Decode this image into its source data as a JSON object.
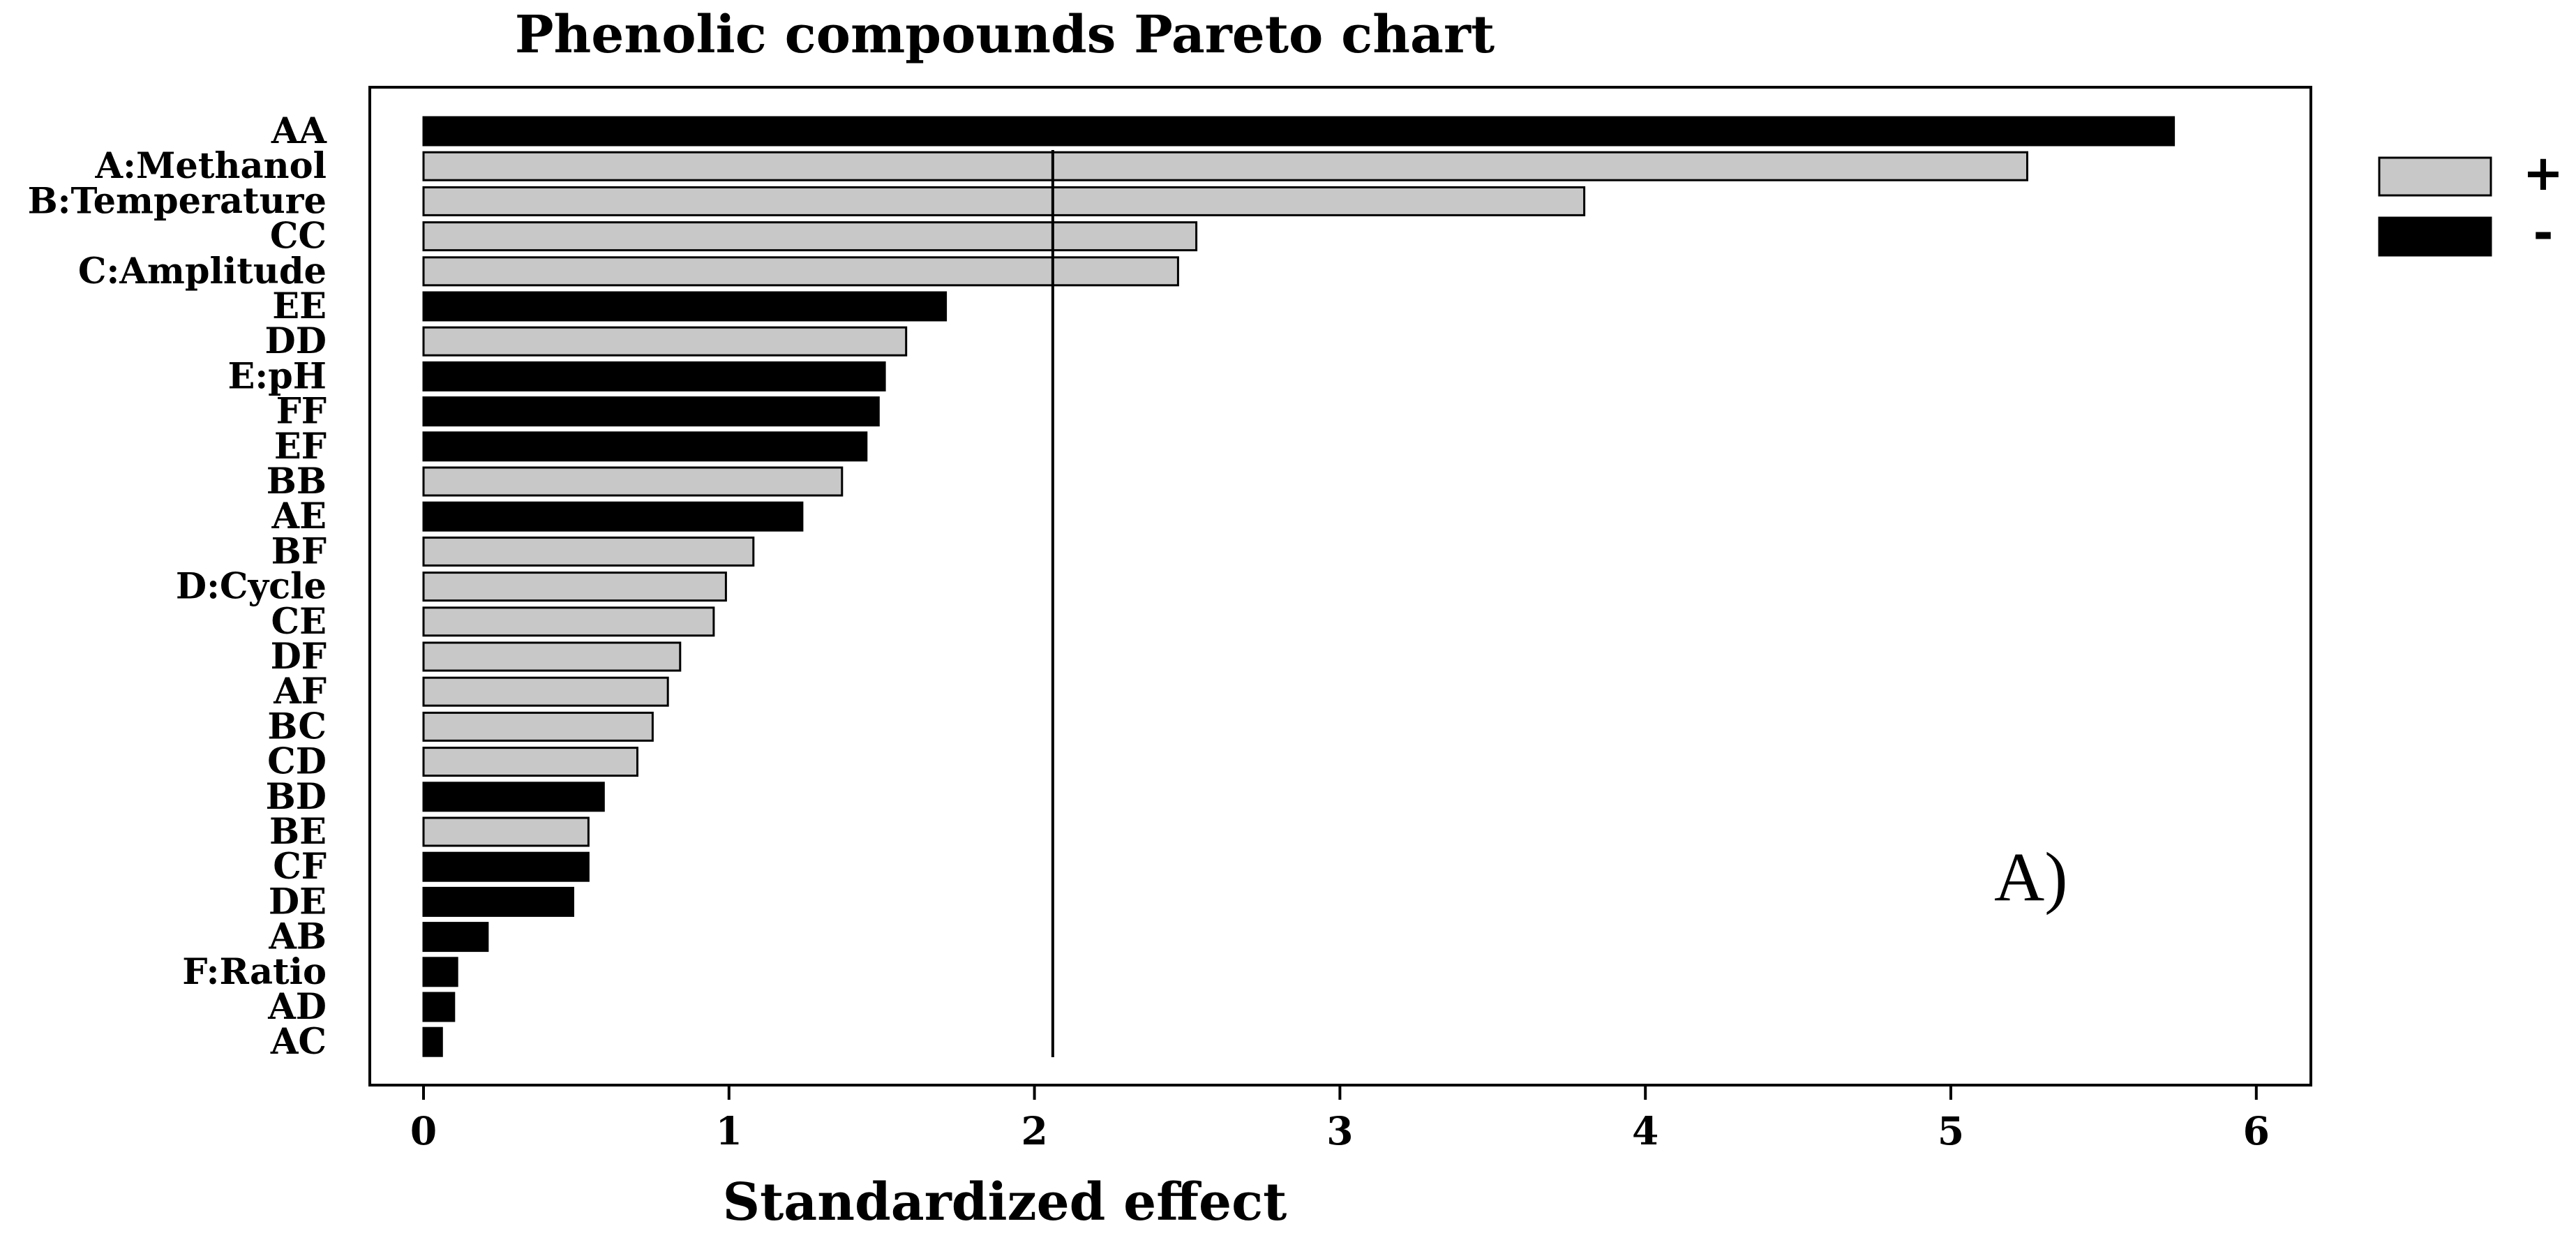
{
  "chart_data": {
    "type": "bar",
    "orientation": "horizontal",
    "title": "Phenolic compounds Pareto chart",
    "xlabel": "Standardized effect",
    "ylabel": "",
    "xlim": [
      -0.17,
      6.17
    ],
    "xticks": [
      0,
      1,
      2,
      3,
      4,
      5,
      6
    ],
    "reference_line": 2.06,
    "annotation": "A)",
    "legend": {
      "placement": "right",
      "entries": [
        {
          "label": "+",
          "color": "#c8c8c8"
        },
        {
          "label": "-",
          "color": "#000000"
        }
      ]
    },
    "colors": {
      "positive": "#c8c8c8",
      "negative": "#000000",
      "stroke": "#000000"
    },
    "bars": [
      {
        "category": "AA",
        "value": 5.73,
        "sign": "-"
      },
      {
        "category": "A:Methanol",
        "value": 5.25,
        "sign": "+"
      },
      {
        "category": "B:Temperature",
        "value": 3.8,
        "sign": "+"
      },
      {
        "category": "CC",
        "value": 2.53,
        "sign": "+"
      },
      {
        "category": "C:Amplitude",
        "value": 2.47,
        "sign": "+"
      },
      {
        "category": "EE",
        "value": 1.71,
        "sign": "-"
      },
      {
        "category": "DD",
        "value": 1.58,
        "sign": "+"
      },
      {
        "category": "E:pH",
        "value": 1.51,
        "sign": "-"
      },
      {
        "category": "FF",
        "value": 1.49,
        "sign": "-"
      },
      {
        "category": "EF",
        "value": 1.45,
        "sign": "-"
      },
      {
        "category": "BB",
        "value": 1.37,
        "sign": "+"
      },
      {
        "category": "AE",
        "value": 1.24,
        "sign": "-"
      },
      {
        "category": "BF",
        "value": 1.08,
        "sign": "+"
      },
      {
        "category": "D:Cycle",
        "value": 0.99,
        "sign": "+"
      },
      {
        "category": "CE",
        "value": 0.95,
        "sign": "+"
      },
      {
        "category": "DF",
        "value": 0.84,
        "sign": "+"
      },
      {
        "category": "AF",
        "value": 0.8,
        "sign": "+"
      },
      {
        "category": "BC",
        "value": 0.75,
        "sign": "+"
      },
      {
        "category": "CD",
        "value": 0.7,
        "sign": "+"
      },
      {
        "category": "BD",
        "value": 0.59,
        "sign": "-"
      },
      {
        "category": "BE",
        "value": 0.54,
        "sign": "+"
      },
      {
        "category": "CF",
        "value": 0.54,
        "sign": "-"
      },
      {
        "category": "DE",
        "value": 0.49,
        "sign": "-"
      },
      {
        "category": "AB",
        "value": 0.21,
        "sign": "-"
      },
      {
        "category": "F:Ratio",
        "value": 0.11,
        "sign": "-"
      },
      {
        "category": "AD",
        "value": 0.1,
        "sign": "-"
      },
      {
        "category": "AC",
        "value": 0.06,
        "sign": "-"
      }
    ]
  }
}
